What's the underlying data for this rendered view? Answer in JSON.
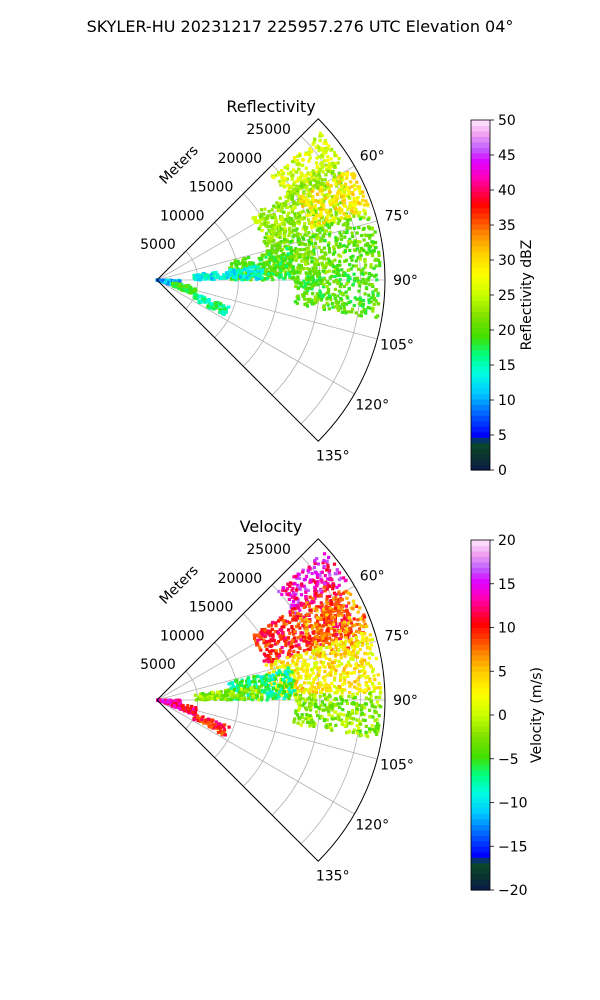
{
  "figure": {
    "title": "SKYLER-HU  20231217  225957.276 UTC Elevation 04°"
  },
  "chart_data": [
    {
      "type": "polar-sector",
      "id": "reflectivity",
      "title": "Reflectivity",
      "radial_axis_label": "Meters",
      "radial_ticks": [
        5000,
        10000,
        15000,
        20000,
        25000
      ],
      "radial_tick_labels": [
        "5000",
        "10000",
        "15000",
        "20000",
        "25000"
      ],
      "rmax": 28000,
      "theta_range_deg": [
        45,
        135
      ],
      "theta_ticks": [
        60,
        75,
        90,
        105,
        120,
        135
      ],
      "theta_tick_labels": [
        "60°",
        "75°",
        "90°",
        "105°",
        "120°",
        "135°"
      ],
      "grid": true,
      "colorbar": {
        "label": "Reflectivity dBZ",
        "range": [
          0,
          50
        ],
        "ticks": [
          "0",
          "5",
          "10",
          "15",
          "20",
          "25",
          "30",
          "35",
          "40",
          "45",
          "50"
        ]
      },
      "echo_regions": [
        {
          "theta": [
            48,
            58
          ],
          "r": [
            19000,
            27000
          ],
          "value": 26
        },
        {
          "theta": [
            56,
            72
          ],
          "r": [
            14000,
            26000
          ],
          "value": 23
        },
        {
          "theta": [
            60,
            72
          ],
          "r": [
            20000,
            27500
          ],
          "value": 29
        },
        {
          "theta": [
            72,
            88
          ],
          "r": [
            14000,
            27500
          ],
          "value": 21
        },
        {
          "theta": [
            76,
            90
          ],
          "r": [
            9000,
            17000
          ],
          "value": 19
        },
        {
          "theta": [
            82,
            90
          ],
          "r": [
            4500,
            13000
          ],
          "value": 13
        },
        {
          "theta": [
            88,
            100
          ],
          "r": [
            17000,
            27500
          ],
          "value": 20
        },
        {
          "theta": [
            90,
            110
          ],
          "r": [
            0,
            3000
          ],
          "value": 11
        },
        {
          "theta": [
            110,
            118
          ],
          "r": [
            5000,
            9500
          ],
          "value": 16
        },
        {
          "theta": [
            100,
            112
          ],
          "r": [
            2000,
            5000
          ],
          "value": 19
        }
      ]
    },
    {
      "type": "polar-sector",
      "id": "velocity",
      "title": "Velocity",
      "radial_axis_label": "Meters",
      "radial_ticks": [
        5000,
        10000,
        15000,
        20000,
        25000
      ],
      "radial_tick_labels": [
        "5000",
        "10000",
        "15000",
        "20000",
        "25000"
      ],
      "rmax": 28000,
      "theta_range_deg": [
        45,
        135
      ],
      "theta_ticks": [
        60,
        75,
        90,
        105,
        120,
        135
      ],
      "theta_tick_labels": [
        "60°",
        "75°",
        "90°",
        "105°",
        "120°",
        "135°"
      ],
      "grid": true,
      "colorbar": {
        "label": "Velocity (m/s)",
        "range": [
          -20,
          20
        ],
        "ticks": [
          "−20",
          "−15",
          "−10",
          "−5",
          "0",
          "5",
          "10",
          "15",
          "20"
        ]
      },
      "echo_regions": [
        {
          "theta": [
            48,
            58
          ],
          "r": [
            20000,
            27500
          ],
          "value": 14
        },
        {
          "theta": [
            56,
            72
          ],
          "r": [
            14000,
            26000
          ],
          "value": 10
        },
        {
          "theta": [
            60,
            75
          ],
          "r": [
            20000,
            27500
          ],
          "value": 7
        },
        {
          "theta": [
            72,
            88
          ],
          "r": [
            14000,
            27500
          ],
          "value": 3
        },
        {
          "theta": [
            76,
            90
          ],
          "r": [
            9000,
            17000
          ],
          "value": -7
        },
        {
          "theta": [
            82,
            90
          ],
          "r": [
            4500,
            13000
          ],
          "value": -2
        },
        {
          "theta": [
            88,
            100
          ],
          "r": [
            17000,
            27500
          ],
          "value": -2
        },
        {
          "theta": [
            90,
            110
          ],
          "r": [
            0,
            3000
          ],
          "value": 14
        },
        {
          "theta": [
            110,
            118
          ],
          "r": [
            5000,
            9500
          ],
          "value": 10
        },
        {
          "theta": [
            100,
            112
          ],
          "r": [
            2000,
            5000
          ],
          "value": 12
        }
      ]
    }
  ]
}
